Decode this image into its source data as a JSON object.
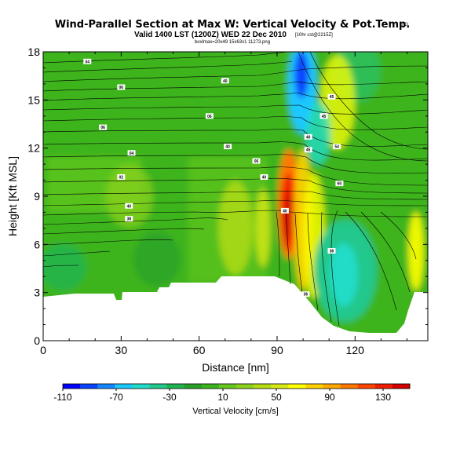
{
  "chart_data": {
    "type": "heatmap",
    "title": "Wind-Parallel Section at Max W: Vertical Velocity & Pot.Temp.",
    "title_mark": "(C)",
    "subtitle": "Valid 1400 LST (1200Z) WED 22 Dec 2010",
    "subtitle_small": "[10hr cst@2215Z]",
    "source_line": "boxlmax=20x49 15x63x1 11273.png",
    "xlabel": "Distance [nm]",
    "ylabel": "Height [Kft MSL]",
    "xlim": [
      0,
      148
    ],
    "ylim": [
      0,
      18
    ],
    "x_ticks": [
      0,
      30,
      60,
      90,
      120
    ],
    "y_ticks": [
      0,
      3,
      6,
      9,
      12,
      15,
      18
    ],
    "colorbar": {
      "label": "Vertical Velocity [cm/s]",
      "min": -110,
      "max": 150,
      "tick_values": [
        -110,
        -70,
        -30,
        10,
        50,
        90,
        130
      ],
      "colors": [
        "#0000ff",
        "#0a42ff",
        "#1486ff",
        "#1ec8ff",
        "#22dcc8",
        "#22c88c",
        "#20b450",
        "#28a028",
        "#3cb41e",
        "#64c81e",
        "#8cd21e",
        "#b4dc14",
        "#d8e814",
        "#ffff00",
        "#ffd200",
        "#ffaa00",
        "#ff7800",
        "#ff4600",
        "#f01e00",
        "#d20000"
      ]
    },
    "contour_labels": [
      {
        "x": 17,
        "y": 17.4,
        "text": "04"
      },
      {
        "x": 30,
        "y": 15.8,
        "text": "06"
      },
      {
        "x": 23,
        "y": 13.3,
        "text": "06"
      },
      {
        "x": 34,
        "y": 11.7,
        "text": "04"
      },
      {
        "x": 30,
        "y": 10.2,
        "text": "02"
      },
      {
        "x": 33,
        "y": 8.4,
        "text": "40"
      },
      {
        "x": 33,
        "y": 7.6,
        "text": "38"
      },
      {
        "x": 70,
        "y": 16.2,
        "text": "40"
      },
      {
        "x": 64,
        "y": 14.0,
        "text": "06"
      },
      {
        "x": 71,
        "y": 12.1,
        "text": "40"
      },
      {
        "x": 82,
        "y": 11.2,
        "text": "06"
      },
      {
        "x": 85,
        "y": 10.2,
        "text": "40"
      },
      {
        "x": 93,
        "y": 8.1,
        "text": "40"
      },
      {
        "x": 111,
        "y": 15.2,
        "text": "45"
      },
      {
        "x": 108,
        "y": 14.0,
        "text": "45"
      },
      {
        "x": 102,
        "y": 12.7,
        "text": "40"
      },
      {
        "x": 102,
        "y": 11.9,
        "text": "45"
      },
      {
        "x": 113,
        "y": 12.1,
        "text": "54"
      },
      {
        "x": 114,
        "y": 9.8,
        "text": "60"
      },
      {
        "x": 111,
        "y": 5.6,
        "text": "36"
      },
      {
        "x": 101,
        "y": 2.9,
        "text": "36"
      }
    ]
  }
}
